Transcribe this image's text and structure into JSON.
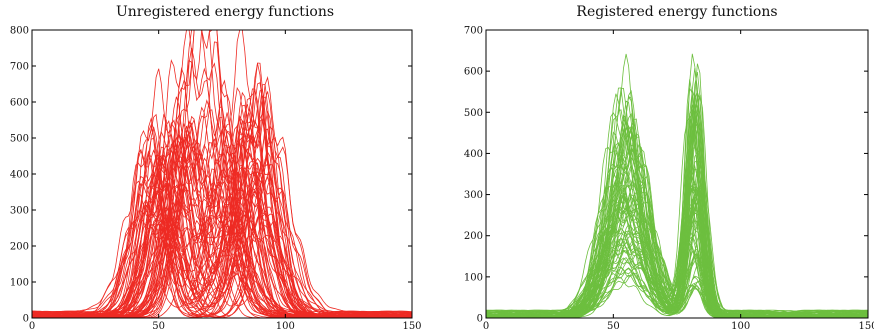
{
  "chart_data": [
    {
      "type": "line",
      "title": "Unregistered energy functions",
      "xlabel": "",
      "ylabel": "",
      "xlim": [
        0,
        150
      ],
      "ylim": [
        0,
        800
      ],
      "x_ticks": [
        "0",
        "50",
        "100",
        "150"
      ],
      "y_ticks": [
        "0",
        "100",
        "200",
        "300",
        "400",
        "500",
        "600",
        "700",
        "800"
      ],
      "grid": false,
      "legend": "none",
      "color": "#ee2b24",
      "series_count": 80,
      "peak_value": 750,
      "series_profile": {
        "description": "two humps per curve",
        "hump_1": {
          "center_range": [
            45,
            65
          ],
          "height_range": [
            250,
            610
          ]
        },
        "hump_2": {
          "center_range": [
            70,
            95
          ],
          "height_range": [
            250,
            750
          ]
        },
        "baseline": [
          0,
          40
        ]
      }
    },
    {
      "type": "line",
      "title": "Registered energy functions",
      "xlabel": "",
      "ylabel": "",
      "xlim": [
        0,
        150
      ],
      "ylim": [
        0,
        700
      ],
      "x_ticks": [
        "0",
        "50",
        "100",
        "150"
      ],
      "y_ticks": [
        "0",
        "100",
        "200",
        "300",
        "400",
        "500",
        "600",
        "700"
      ],
      "grid": false,
      "legend": "none",
      "color": "#6dbf3f",
      "series_count": 80,
      "peak_value": 630,
      "series_profile": {
        "description": "two aligned humps per curve",
        "hump_1": {
          "center": 55,
          "height_range": [
            80,
            578
          ]
        },
        "hump_2": {
          "center": 82,
          "height_range": [
            70,
            630
          ]
        },
        "baseline": [
          0,
          40
        ]
      }
    }
  ]
}
